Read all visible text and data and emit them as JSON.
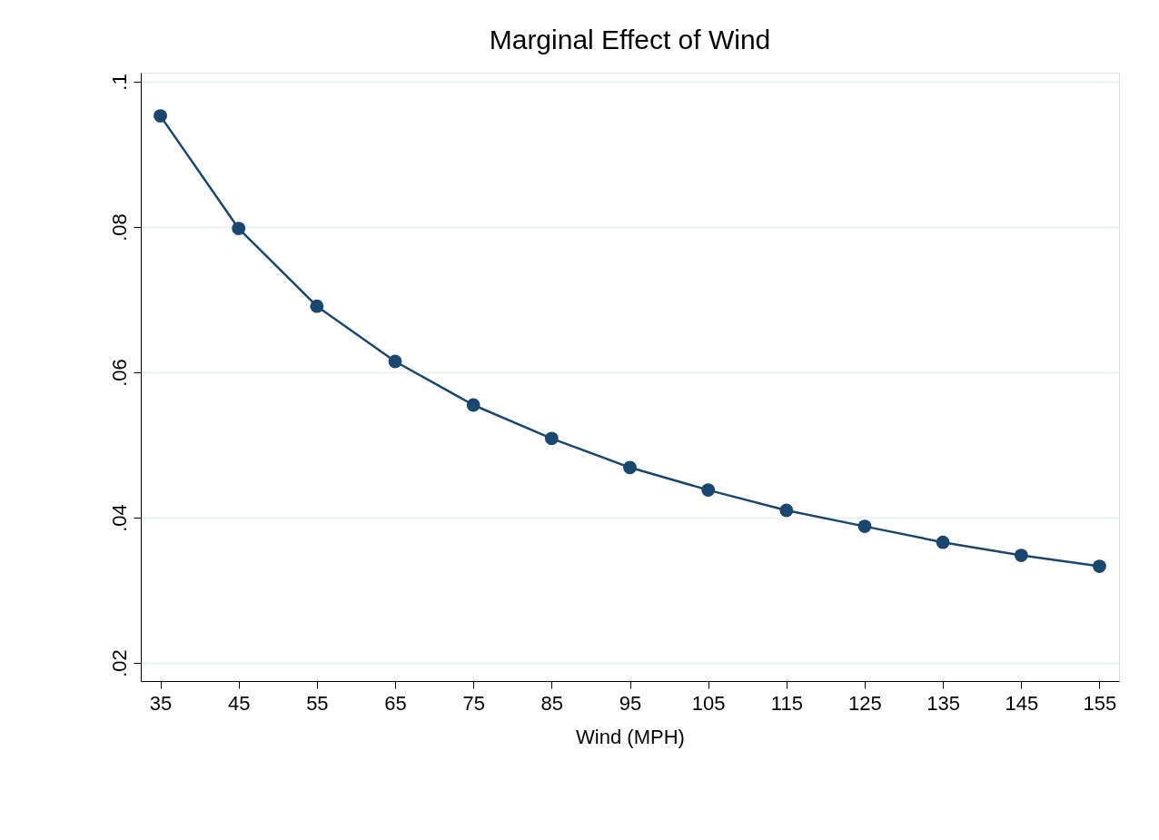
{
  "chart_data": {
    "type": "line",
    "title": "Marginal Effect of Wind",
    "xlabel": "Wind (MPH)",
    "x": [
      35,
      45,
      55,
      65,
      75,
      85,
      95,
      105,
      115,
      125,
      135,
      145,
      155
    ],
    "series": [
      {
        "color": "#1a476f",
        "values": [
          0.0953,
          0.0798,
          0.0691,
          0.0615,
          0.0555,
          0.0509,
          0.0469,
          0.0438,
          0.041,
          0.0388,
          0.0366,
          0.0348,
          0.0333
        ]
      }
    ],
    "xlim": [
      32.5,
      157.5
    ],
    "xticks": [
      35,
      45,
      55,
      65,
      75,
      85,
      95,
      105,
      115,
      125,
      135,
      145,
      155
    ],
    "ylim": [
      0.0175,
      0.10125
    ],
    "yticks": [
      {
        "value": 0.02,
        "label": ".02"
      },
      {
        "value": 0.04,
        "label": ".04"
      },
      {
        "value": 0.06,
        "label": ".06"
      },
      {
        "value": 0.08,
        "label": ".08"
      },
      {
        "value": 0.1,
        "label": ".1"
      }
    ],
    "grid": "y",
    "marker": "circle",
    "line_style": "solid"
  }
}
